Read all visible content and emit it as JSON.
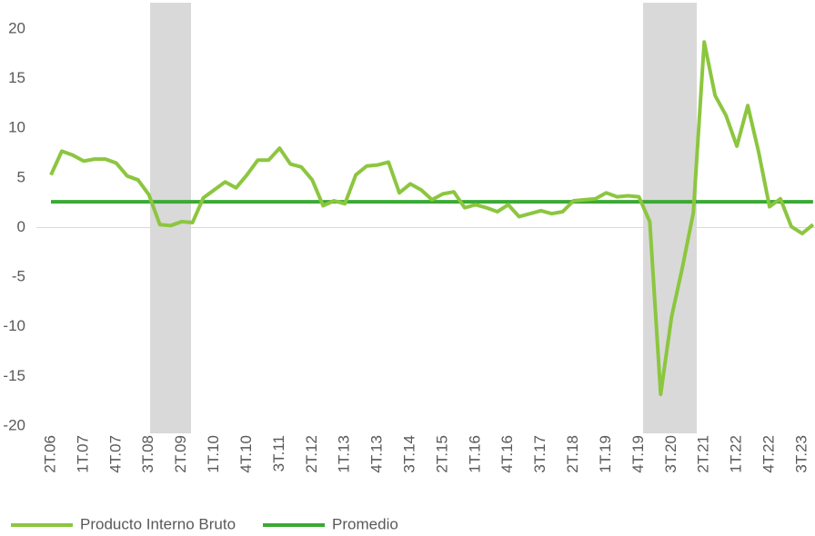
{
  "chart_data": {
    "type": "line",
    "categories": [
      "2T.06",
      null,
      null,
      "1T.07",
      null,
      null,
      "4T.07",
      null,
      null,
      "3T.08",
      null,
      null,
      "2T.09",
      null,
      null,
      "1T.10",
      null,
      null,
      "4T.10",
      null,
      null,
      "3T.11",
      null,
      null,
      "2T.12",
      null,
      null,
      "1T.13",
      null,
      null,
      "4T.13",
      null,
      null,
      "3T.14",
      null,
      null,
      "2T.15",
      null,
      null,
      "1T.16",
      null,
      null,
      "4T.16",
      null,
      null,
      "3T.17",
      null,
      null,
      "2T.18",
      null,
      null,
      "1T.19",
      null,
      null,
      "4T.19",
      null,
      null,
      "3T.20",
      null,
      null,
      "2T.21",
      null,
      null,
      "1T.22",
      null,
      null,
      "4T.22",
      null,
      null,
      "3T.23",
      null
    ],
    "series": [
      {
        "name": "Producto Interno Bruto",
        "color": "#8cc63f",
        "values": [
          5.3,
          7.7,
          7.3,
          6.7,
          6.9,
          6.9,
          6.5,
          5.2,
          4.8,
          3.3,
          0.3,
          0.2,
          0.6,
          0.5,
          3.0,
          3.8,
          4.6,
          4.0,
          5.3,
          6.8,
          6.8,
          8.0,
          6.4,
          6.1,
          4.8,
          2.2,
          2.7,
          2.4,
          5.3,
          6.2,
          6.3,
          6.6,
          3.5,
          4.4,
          3.8,
          2.8,
          3.4,
          3.6,
          2.0,
          2.3,
          2.0,
          1.6,
          2.3,
          1.1,
          1.4,
          1.7,
          1.4,
          1.6,
          2.7,
          2.8,
          2.9,
          3.5,
          3.1,
          3.2,
          3.1,
          0.6,
          -16.8,
          -9.0,
          -4.0,
          1.5,
          18.7,
          13.3,
          11.3,
          8.2,
          12.3,
          7.6,
          2.1,
          2.9,
          0.1,
          -0.6,
          0.3
        ]
      },
      {
        "name": "Promedio",
        "color": "#3aaa35",
        "values": [
          2.6,
          2.6,
          2.6,
          2.6,
          2.6,
          2.6,
          2.6,
          2.6,
          2.6,
          2.6,
          2.6,
          2.6,
          2.6,
          2.6,
          2.6,
          2.6,
          2.6,
          2.6,
          2.6,
          2.6,
          2.6,
          2.6,
          2.6,
          2.6,
          2.6,
          2.6,
          2.6,
          2.6,
          2.6,
          2.6,
          2.6,
          2.6,
          2.6,
          2.6,
          2.6,
          2.6,
          2.6,
          2.6,
          2.6,
          2.6,
          2.6,
          2.6,
          2.6,
          2.6,
          2.6,
          2.6,
          2.6,
          2.6,
          2.6,
          2.6,
          2.6,
          2.6,
          2.6,
          2.6,
          2.6,
          2.6,
          2.6,
          2.6,
          2.6,
          2.6,
          2.6,
          2.6,
          2.6,
          2.6,
          2.6,
          2.6,
          2.6,
          2.6,
          2.6,
          2.6,
          2.6
        ]
      }
    ],
    "ylim": [
      -20,
      20
    ],
    "yticks": [
      -20,
      -15,
      -10,
      -5,
      0,
      5,
      10,
      15,
      20
    ],
    "grid": false,
    "legend": "bottom"
  }
}
